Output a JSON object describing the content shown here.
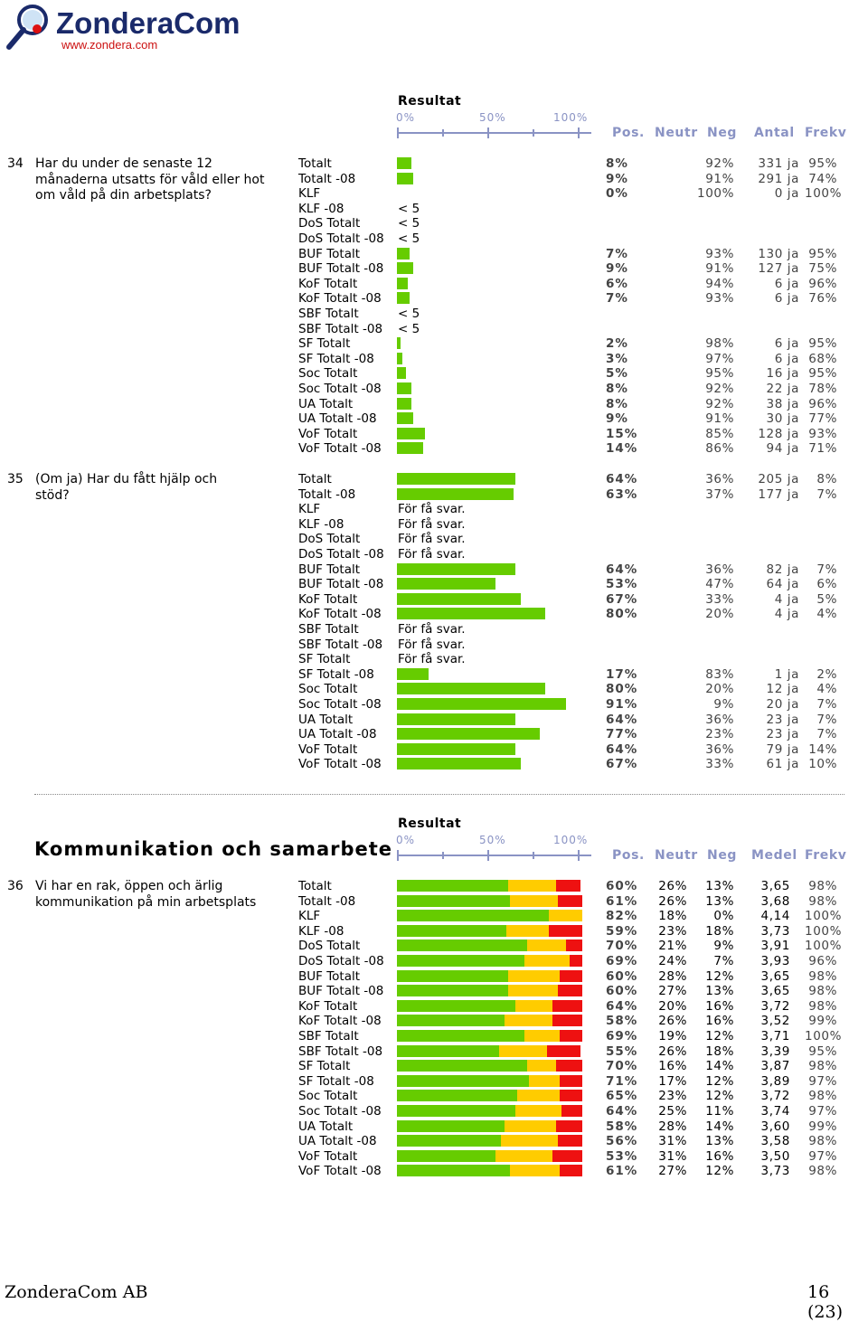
{
  "logo": {
    "text": "ZonderaCom",
    "url_text": "www.zondera.com"
  },
  "scale": {
    "title": "Resultat",
    "ticks": [
      "0%",
      "50%",
      "100%"
    ]
  },
  "headers_a": {
    "pos": "Pos.",
    "neutr": "Neutr",
    "neg": "Neg",
    "count": "Antal",
    "frekv": "Frekv"
  },
  "headers_b": {
    "pos": "Pos.",
    "neutr": "Neutr",
    "neg": "Neg",
    "count": "Medel",
    "frekv": "Frekv"
  },
  "colors": {
    "green": "#66cc00",
    "yellow": "#ffcc00",
    "red": "#ee1111"
  },
  "q34": {
    "num": "34",
    "text": "Har du under de senaste 12 månaderna utsatts för våld eller hot om våld på din arbetsplats?",
    "rows": [
      {
        "label": "Totalt",
        "pos": "8%",
        "neg": "92%",
        "count": "331 ja",
        "frekv": "95%",
        "pct": 8
      },
      {
        "label": "Totalt -08",
        "pos": "9%",
        "neg": "91%",
        "count": "291 ja",
        "frekv": "74%",
        "pct": 9
      },
      {
        "label": "KLF",
        "pos": "0%",
        "neg": "100%",
        "count": "0 ja",
        "frekv": "100%",
        "pct": 0
      },
      {
        "label": "KLF -08",
        "note": "< 5"
      },
      {
        "label": "DoS Totalt",
        "note": "< 5"
      },
      {
        "label": "DoS Totalt -08",
        "note": "< 5"
      },
      {
        "label": "BUF Totalt",
        "pos": "7%",
        "neg": "93%",
        "count": "130 ja",
        "frekv": "95%",
        "pct": 7
      },
      {
        "label": "BUF Totalt -08",
        "pos": "9%",
        "neg": "91%",
        "count": "127 ja",
        "frekv": "75%",
        "pct": 9
      },
      {
        "label": "KoF Totalt",
        "pos": "6%",
        "neg": "94%",
        "count": "6 ja",
        "frekv": "96%",
        "pct": 6
      },
      {
        "label": "KoF Totalt -08",
        "pos": "7%",
        "neg": "93%",
        "count": "6 ja",
        "frekv": "76%",
        "pct": 7
      },
      {
        "label": "SBF Totalt",
        "note": "< 5"
      },
      {
        "label": "SBF Totalt -08",
        "note": "< 5"
      },
      {
        "label": "SF Totalt",
        "pos": "2%",
        "neg": "98%",
        "count": "6 ja",
        "frekv": "95%",
        "pct": 2
      },
      {
        "label": "SF Totalt -08",
        "pos": "3%",
        "neg": "97%",
        "count": "6 ja",
        "frekv": "68%",
        "pct": 3
      },
      {
        "label": "Soc Totalt",
        "pos": "5%",
        "neg": "95%",
        "count": "16 ja",
        "frekv": "95%",
        "pct": 5
      },
      {
        "label": "Soc Totalt -08",
        "pos": "8%",
        "neg": "92%",
        "count": "22 ja",
        "frekv": "78%",
        "pct": 8
      },
      {
        "label": "UA Totalt",
        "pos": "8%",
        "neg": "92%",
        "count": "38 ja",
        "frekv": "96%",
        "pct": 8
      },
      {
        "label": "UA Totalt -08",
        "pos": "9%",
        "neg": "91%",
        "count": "30 ja",
        "frekv": "77%",
        "pct": 9
      },
      {
        "label": "VoF Totalt",
        "pos": "15%",
        "neg": "85%",
        "count": "128 ja",
        "frekv": "93%",
        "pct": 15
      },
      {
        "label": "VoF Totalt -08",
        "pos": "14%",
        "neg": "86%",
        "count": "94 ja",
        "frekv": "71%",
        "pct": 14
      }
    ]
  },
  "q35": {
    "num": "35",
    "text": "(Om ja) Har du fått hjälp och stöd?",
    "rows": [
      {
        "label": "Totalt",
        "pos": "64%",
        "neg": "36%",
        "count": "205 ja",
        "frekv": "8%",
        "pct": 64
      },
      {
        "label": "Totalt -08",
        "pos": "63%",
        "neg": "37%",
        "count": "177 ja",
        "frekv": "7%",
        "pct": 63
      },
      {
        "label": "KLF",
        "note": "För få svar."
      },
      {
        "label": "KLF -08",
        "note": "För få svar."
      },
      {
        "label": "DoS Totalt",
        "note": "För få svar."
      },
      {
        "label": "DoS Totalt -08",
        "note": "För få svar."
      },
      {
        "label": "BUF Totalt",
        "pos": "64%",
        "neg": "36%",
        "count": "82 ja",
        "frekv": "7%",
        "pct": 64
      },
      {
        "label": "BUF Totalt -08",
        "pos": "53%",
        "neg": "47%",
        "count": "64 ja",
        "frekv": "6%",
        "pct": 53
      },
      {
        "label": "KoF Totalt",
        "pos": "67%",
        "neg": "33%",
        "count": "4 ja",
        "frekv": "5%",
        "pct": 67
      },
      {
        "label": "KoF Totalt -08",
        "pos": "80%",
        "neg": "20%",
        "count": "4 ja",
        "frekv": "4%",
        "pct": 80
      },
      {
        "label": "SBF Totalt",
        "note": "För få svar."
      },
      {
        "label": "SBF Totalt -08",
        "note": "För få svar."
      },
      {
        "label": "SF Totalt",
        "note": "För få svar."
      },
      {
        "label": "SF Totalt -08",
        "pos": "17%",
        "neg": "83%",
        "count": "1 ja",
        "frekv": "2%",
        "pct": 17
      },
      {
        "label": "Soc Totalt",
        "pos": "80%",
        "neg": "20%",
        "count": "12 ja",
        "frekv": "4%",
        "pct": 80
      },
      {
        "label": "Soc Totalt -08",
        "pos": "91%",
        "neg": "9%",
        "count": "20 ja",
        "frekv": "7%",
        "pct": 91
      },
      {
        "label": "UA Totalt",
        "pos": "64%",
        "neg": "36%",
        "count": "23 ja",
        "frekv": "7%",
        "pct": 64
      },
      {
        "label": "UA Totalt -08",
        "pos": "77%",
        "neg": "23%",
        "count": "23 ja",
        "frekv": "7%",
        "pct": 77
      },
      {
        "label": "VoF Totalt",
        "pos": "64%",
        "neg": "36%",
        "count": "79 ja",
        "frekv": "14%",
        "pct": 64
      },
      {
        "label": "VoF Totalt -08",
        "pos": "67%",
        "neg": "33%",
        "count": "61 ja",
        "frekv": "10%",
        "pct": 67
      }
    ]
  },
  "section": {
    "title": "Kommunikation och samarbete"
  },
  "q36": {
    "num": "36",
    "text": "Vi har en rak, öppen och ärlig kommunikation på min arbetsplats",
    "rows": [
      {
        "label": "Totalt",
        "pos": "60%",
        "neu": "26%",
        "neg": "13%",
        "mean": "3,65",
        "frekv": "98%",
        "p": 60,
        "n": 26,
        "g": 13
      },
      {
        "label": "Totalt -08",
        "pos": "61%",
        "neu": "26%",
        "neg": "13%",
        "mean": "3,68",
        "frekv": "98%",
        "p": 61,
        "n": 26,
        "g": 13
      },
      {
        "label": "KLF",
        "pos": "82%",
        "neu": "18%",
        "neg": "0%",
        "mean": "4,14",
        "frekv": "100%",
        "p": 82,
        "n": 18,
        "g": 0
      },
      {
        "label": "KLF -08",
        "pos": "59%",
        "neu": "23%",
        "neg": "18%",
        "mean": "3,73",
        "frekv": "100%",
        "p": 59,
        "n": 23,
        "g": 18
      },
      {
        "label": "DoS Totalt",
        "pos": "70%",
        "neu": "21%",
        "neg": "9%",
        "mean": "3,91",
        "frekv": "100%",
        "p": 70,
        "n": 21,
        "g": 9
      },
      {
        "label": "DoS Totalt -08",
        "pos": "69%",
        "neu": "24%",
        "neg": "7%",
        "mean": "3,93",
        "frekv": "96%",
        "p": 69,
        "n": 24,
        "g": 7
      },
      {
        "label": "BUF Totalt",
        "pos": "60%",
        "neu": "28%",
        "neg": "12%",
        "mean": "3,65",
        "frekv": "98%",
        "p": 60,
        "n": 28,
        "g": 12
      },
      {
        "label": "BUF Totalt -08",
        "pos": "60%",
        "neu": "27%",
        "neg": "13%",
        "mean": "3,65",
        "frekv": "98%",
        "p": 60,
        "n": 27,
        "g": 13
      },
      {
        "label": "KoF Totalt",
        "pos": "64%",
        "neu": "20%",
        "neg": "16%",
        "mean": "3,72",
        "frekv": "98%",
        "p": 64,
        "n": 20,
        "g": 16
      },
      {
        "label": "KoF Totalt -08",
        "pos": "58%",
        "neu": "26%",
        "neg": "16%",
        "mean": "3,52",
        "frekv": "99%",
        "p": 58,
        "n": 26,
        "g": 16
      },
      {
        "label": "SBF Totalt",
        "pos": "69%",
        "neu": "19%",
        "neg": "12%",
        "mean": "3,71",
        "frekv": "100%",
        "p": 69,
        "n": 19,
        "g": 12
      },
      {
        "label": "SBF Totalt -08",
        "pos": "55%",
        "neu": "26%",
        "neg": "18%",
        "mean": "3,39",
        "frekv": "95%",
        "p": 55,
        "n": 26,
        "g": 18
      },
      {
        "label": "SF Totalt",
        "pos": "70%",
        "neu": "16%",
        "neg": "14%",
        "mean": "3,87",
        "frekv": "98%",
        "p": 70,
        "n": 16,
        "g": 14
      },
      {
        "label": "SF Totalt -08",
        "pos": "71%",
        "neu": "17%",
        "neg": "12%",
        "mean": "3,89",
        "frekv": "97%",
        "p": 71,
        "n": 17,
        "g": 12
      },
      {
        "label": "Soc Totalt",
        "pos": "65%",
        "neu": "23%",
        "neg": "12%",
        "mean": "3,72",
        "frekv": "98%",
        "p": 65,
        "n": 23,
        "g": 12
      },
      {
        "label": "Soc Totalt -08",
        "pos": "64%",
        "neu": "25%",
        "neg": "11%",
        "mean": "3,74",
        "frekv": "97%",
        "p": 64,
        "n": 25,
        "g": 11
      },
      {
        "label": "UA Totalt",
        "pos": "58%",
        "neu": "28%",
        "neg": "14%",
        "mean": "3,60",
        "frekv": "99%",
        "p": 58,
        "n": 28,
        "g": 14
      },
      {
        "label": "UA Totalt -08",
        "pos": "56%",
        "neu": "31%",
        "neg": "13%",
        "mean": "3,58",
        "frekv": "98%",
        "p": 56,
        "n": 31,
        "g": 13
      },
      {
        "label": "VoF Totalt",
        "pos": "53%",
        "neu": "31%",
        "neg": "16%",
        "mean": "3,50",
        "frekv": "97%",
        "p": 53,
        "n": 31,
        "g": 16
      },
      {
        "label": "VoF Totalt -08",
        "pos": "61%",
        "neu": "27%",
        "neg": "12%",
        "mean": "3,73",
        "frekv": "98%",
        "p": 61,
        "n": 27,
        "g": 12
      }
    ]
  },
  "footer": {
    "company": "ZonderaCom AB",
    "page": "16 (23)"
  }
}
